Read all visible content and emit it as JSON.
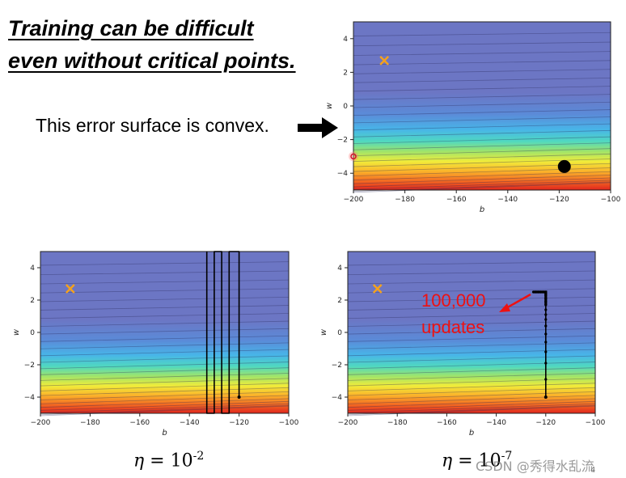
{
  "slide": {
    "title_line1": "Training can be difficult",
    "title_line2": "even without critical points.",
    "statement": "This error surface is convex.",
    "eta_left": {
      "symbol": "η",
      "equals": " = 10",
      "exponent": "-2"
    },
    "eta_right": {
      "symbol": "η",
      "equals": " = 10",
      "exponent": "-7"
    },
    "watermark": "CSDN @秀得水乱流",
    "page_number": "4",
    "annotation_line1": "100,000",
    "annotation_line2": "updates",
    "colors": {
      "annotation": "#ee1111",
      "minimum_marker": "#f5a21b",
      "path": "#000000"
    }
  },
  "chart_data": [
    {
      "id": "top",
      "type": "contour",
      "title": "",
      "xlabel": "b",
      "ylabel": "w",
      "xlim": [
        -200,
        -100
      ],
      "ylim": [
        -5,
        5
      ],
      "xticks": [
        -200,
        -180,
        -160,
        -140,
        -120,
        -100
      ],
      "yticks": [
        -4,
        -2,
        0,
        2,
        4
      ],
      "x_tick_labels": [
        "−200",
        "−180",
        "−160",
        "−140",
        "−120",
        "−100"
      ],
      "y_tick_labels": [
        "−4",
        "−2",
        "0",
        "2",
        "4"
      ],
      "minimum": {
        "b": -188,
        "w": 2.7
      },
      "start_point": {
        "b": -118,
        "w": -3.6
      },
      "extra_marker": {
        "b": -200,
        "w": -3.0
      },
      "path": []
    },
    {
      "id": "bottom-left",
      "type": "contour",
      "title": "",
      "xlabel": "b",
      "ylabel": "w",
      "xlim": [
        -200,
        -100
      ],
      "ylim": [
        -5,
        5
      ],
      "xticks": [
        -200,
        -180,
        -160,
        -140,
        -120,
        -100
      ],
      "yticks": [
        -4,
        -2,
        0,
        2,
        4
      ],
      "x_tick_labels": [
        "−200",
        "−180",
        "−160",
        "−140",
        "−120",
        "−100"
      ],
      "y_tick_labels": [
        "−4",
        "−2",
        "0",
        "2",
        "4"
      ],
      "minimum": {
        "b": -188,
        "w": 2.7
      },
      "start_point": {
        "b": -120,
        "w": -4.0
      },
      "extra_marker": null,
      "path": [
        [
          -120,
          -4.0
        ],
        [
          -120,
          5
        ],
        [
          -124,
          5
        ],
        [
          -124,
          -5
        ],
        [
          -127,
          -5
        ],
        [
          -127,
          5
        ],
        [
          -130,
          5
        ],
        [
          -130,
          -5
        ],
        [
          -133,
          -5
        ],
        [
          -133,
          5
        ]
      ]
    },
    {
      "id": "bottom-right",
      "type": "contour",
      "title": "",
      "xlabel": "b",
      "ylabel": "w",
      "xlim": [
        -200,
        -100
      ],
      "ylim": [
        -5,
        5
      ],
      "xticks": [
        -200,
        -180,
        -160,
        -140,
        -120,
        -100
      ],
      "yticks": [
        -4,
        -2,
        0,
        2,
        4
      ],
      "x_tick_labels": [
        "−200",
        "−180",
        "−160",
        "−140",
        "−120",
        "−100"
      ],
      "y_tick_labels": [
        "−4",
        "−2",
        "0",
        "2",
        "4"
      ],
      "minimum": {
        "b": -188,
        "w": 2.7
      },
      "start_point": {
        "b": -120,
        "w": -4.0
      },
      "extra_marker": null,
      "path": [
        [
          -120,
          -4.0
        ],
        [
          -120,
          -2.9
        ],
        [
          -120,
          -1.9
        ],
        [
          -120,
          -1.2
        ],
        [
          -120,
          -0.6
        ],
        [
          -120,
          -0.1
        ],
        [
          -120,
          0.4
        ],
        [
          -120,
          0.8
        ],
        [
          -120,
          1.1
        ],
        [
          -120,
          1.4
        ],
        [
          -120,
          1.7
        ],
        [
          -120,
          1.9
        ],
        [
          -120,
          2.1
        ],
        [
          -120,
          2.3
        ],
        [
          -120,
          2.4
        ],
        [
          -120,
          2.5
        ],
        [
          -121,
          2.5
        ],
        [
          -122,
          2.5
        ],
        [
          -123,
          2.5
        ],
        [
          -124,
          2.5
        ],
        [
          -125,
          2.5
        ]
      ]
    }
  ]
}
